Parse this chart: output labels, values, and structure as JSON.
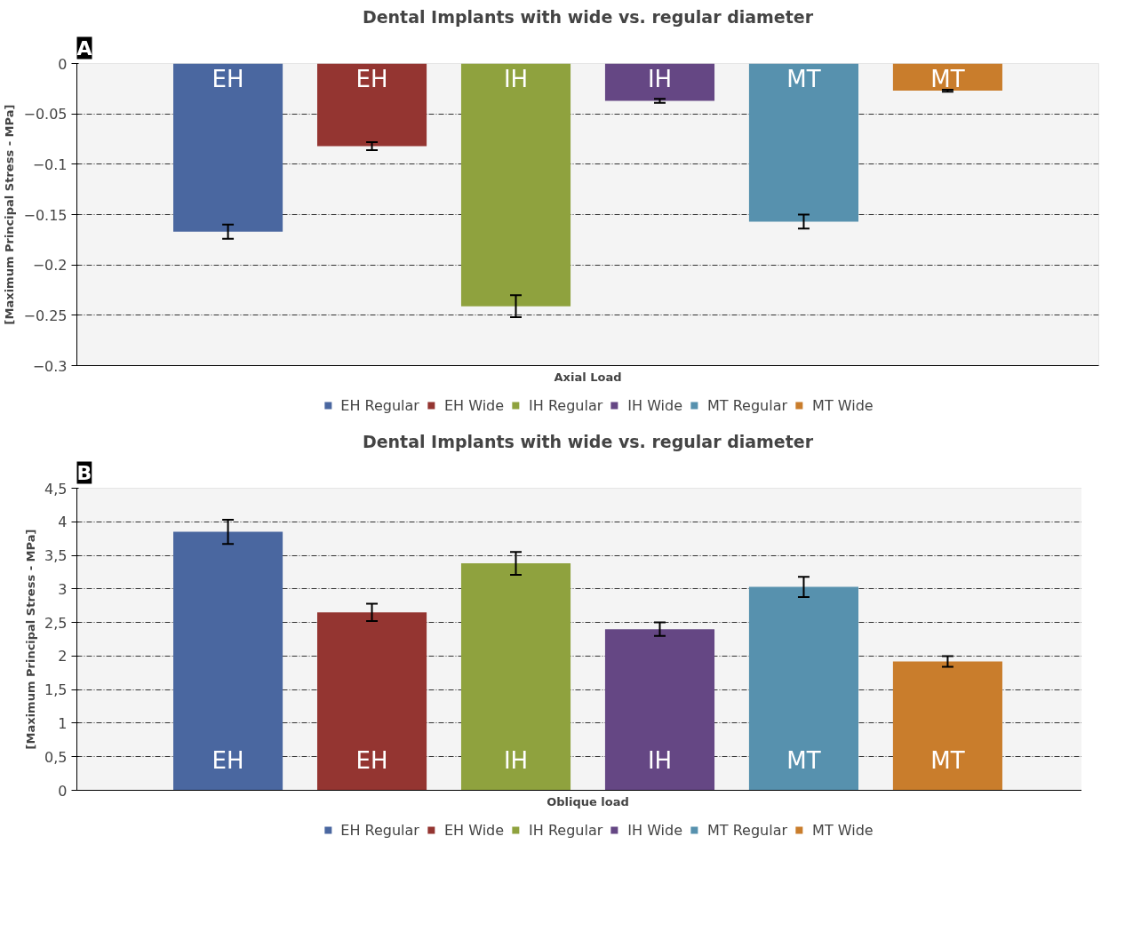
{
  "chart_data": [
    {
      "type": "bar",
      "title": "Dental Implants with wide vs. regular diameter",
      "xlabel": "Axial Load",
      "ylabel": "[Maximum Principal Stress - MPa]",
      "categories": [
        null
      ],
      "ylim": [
        -0.3,
        0
      ],
      "yticks": [
        0,
        -0.05,
        -0.1,
        -0.15,
        -0.2,
        -0.25,
        -0.3
      ],
      "grid": "y",
      "legend": "bottom",
      "annotations": [
        "A",
        "EH",
        "EH",
        "IH",
        "IH",
        "MT",
        "MT"
      ],
      "series": [
        {
          "name": "EH Regular",
          "color": "#4a67a0",
          "values": [
            -0.167
          ],
          "errors": [
            0.007
          ]
        },
        {
          "name": "EH Wide",
          "color": "#943531",
          "values": [
            -0.082
          ],
          "errors": [
            0.004
          ]
        },
        {
          "name": "IH Regular",
          "color": "#8fa23e",
          "values": [
            -0.241
          ],
          "errors": [
            0.011
          ]
        },
        {
          "name": "IH Wide",
          "color": "#654784",
          "values": [
            -0.037
          ],
          "errors": [
            0.002
          ]
        },
        {
          "name": "MT Regular",
          "color": "#5791ae",
          "values": [
            -0.157
          ],
          "errors": [
            0.007
          ]
        },
        {
          "name": "MT Wide",
          "color": "#c97d2c",
          "values": [
            -0.027
          ],
          "errors": [
            0.001
          ]
        }
      ]
    },
    {
      "type": "bar",
      "title": "Dental Implants with wide vs. regular diameter",
      "xlabel": "Oblique load",
      "ylabel": "[Maximum Principal Stress - MPa]",
      "categories": [
        null
      ],
      "ylim": [
        0,
        4.5
      ],
      "yticks": [
        0,
        {
          "value": 0.5,
          "label": "0,5"
        },
        1,
        {
          "value": 1.5,
          "label": "1,5"
        },
        2,
        {
          "value": 2.5,
          "label": "2,5"
        },
        3,
        {
          "value": 3.5,
          "label": "3,5"
        },
        4,
        {
          "value": 4.5,
          "label": "4,5"
        }
      ],
      "grid": "y",
      "legend": "bottom",
      "annotations": [
        "B",
        "EH",
        "EH",
        "IH",
        "IH",
        "MT",
        "MT"
      ],
      "series": [
        {
          "name": "EH Regular",
          "color": "#4a67a0",
          "values": [
            3.85
          ],
          "errors": [
            0.18
          ]
        },
        {
          "name": "EH Wide",
          "color": "#943531",
          "values": [
            2.65
          ],
          "errors": [
            0.13
          ]
        },
        {
          "name": "IH Regular",
          "color": "#8fa23e",
          "values": [
            3.38
          ],
          "errors": [
            0.17
          ]
        },
        {
          "name": "IH Wide",
          "color": "#654784",
          "values": [
            2.4
          ],
          "errors": [
            0.1
          ]
        },
        {
          "name": "MT Regular",
          "color": "#5791ae",
          "values": [
            3.03
          ],
          "errors": [
            0.15
          ]
        },
        {
          "name": "MT Wide",
          "color": "#c97d2c",
          "values": [
            1.92
          ],
          "errors": [
            0.08
          ]
        }
      ]
    }
  ]
}
